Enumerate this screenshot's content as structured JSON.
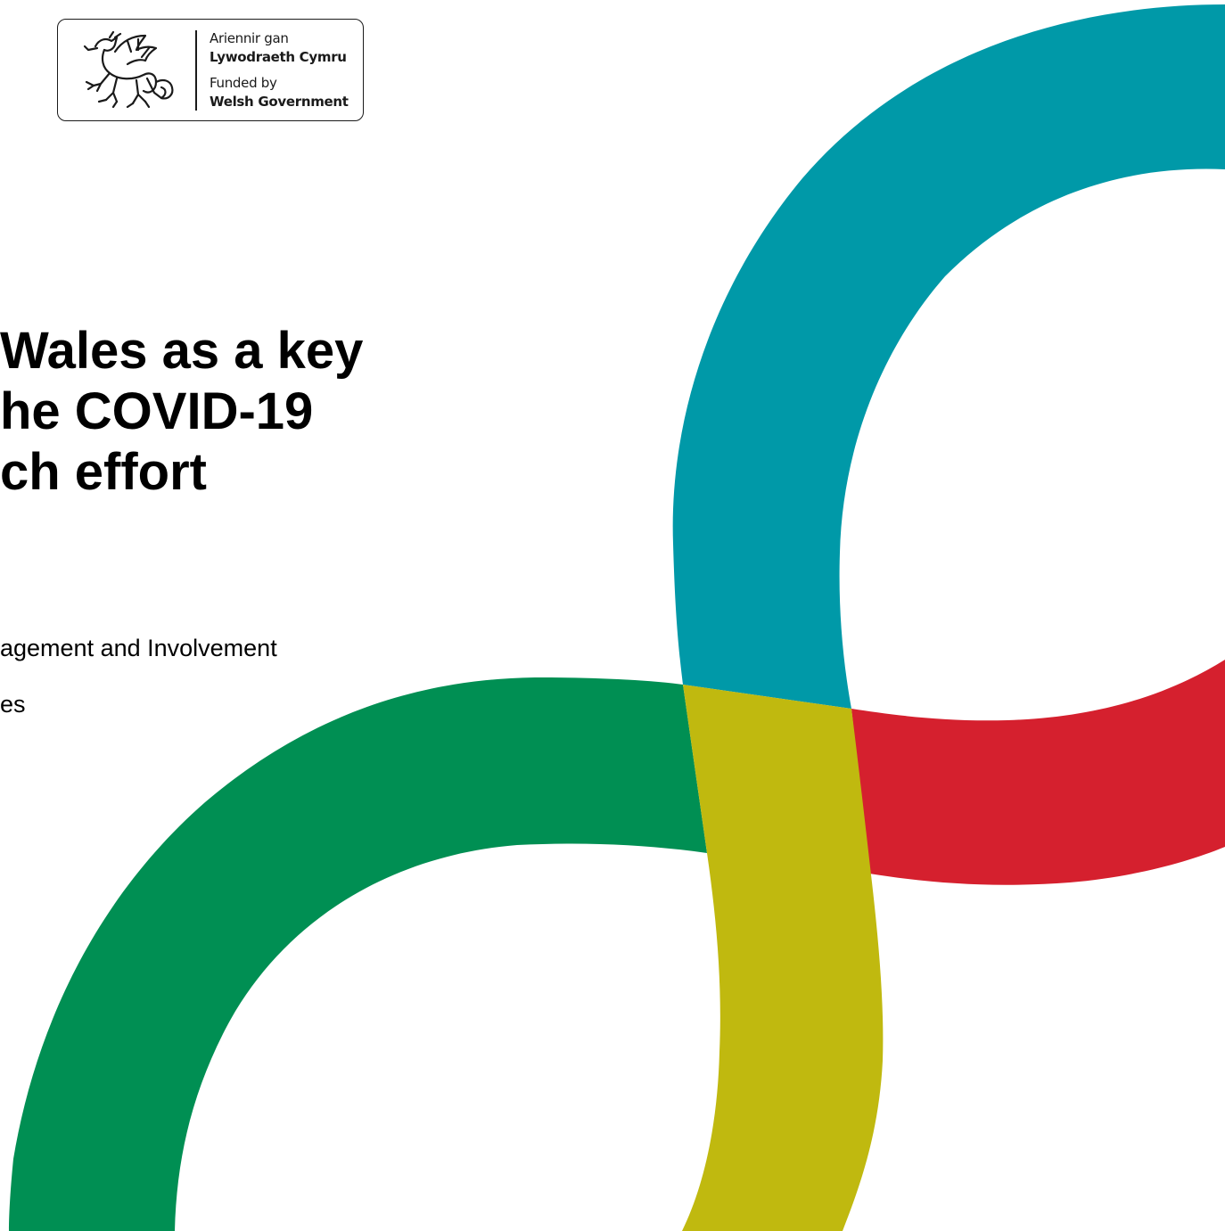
{
  "logo": {
    "line1": "Ariennir gan",
    "line2": "Lywodraeth Cymru",
    "line3": "Funded by",
    "line4": "Welsh Government"
  },
  "title": {
    "lines": [
      "Wales as a key",
      "he COVID-19",
      "ch effort"
    ]
  },
  "subtitle": {
    "line1": "agement and Involvement",
    "line2": "es"
  },
  "colors": {
    "teal": "#0099a8",
    "red": "#d5202e",
    "green": "#008f53",
    "olive": "#c0b90f"
  },
  "icons": [
    "welsh-dragon-icon"
  ]
}
